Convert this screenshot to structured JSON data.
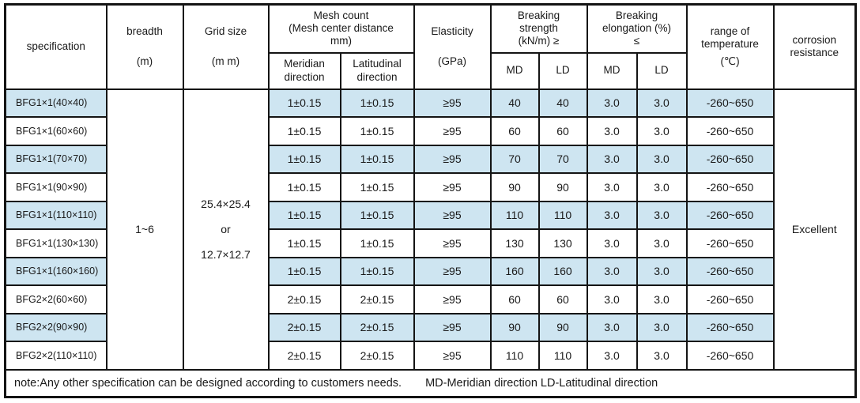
{
  "colors": {
    "highlight_row": "#cee5f1",
    "border": "#141414",
    "text": "#1a1a1a",
    "background": "#ffffff"
  },
  "header": {
    "specification": "specification",
    "breadth": {
      "l1": "breadth",
      "l2": "(m)"
    },
    "grid_size": {
      "l1": "Grid size",
      "l2": "(m m)"
    },
    "mesh_count": {
      "l1": "Mesh count",
      "l2": "(Mesh center distance",
      "l3": "mm)",
      "sub": [
        "Meridian direction",
        "Latitudinal direction"
      ]
    },
    "elasticity": {
      "l1": "Elasticity",
      "l2": "(GPa)"
    },
    "breaking_strength": {
      "l1": "Breaking",
      "l2": "strength",
      "l3": "(kN/m)  ≥",
      "sub": [
        "MD",
        "LD"
      ]
    },
    "breaking_elongation": {
      "l1": "Breaking",
      "l2": "elongation (%)",
      "l3": "≤",
      "sub": [
        "MD",
        "LD"
      ]
    },
    "temperature": {
      "l1": "range of",
      "l2": "temperature",
      "l3": "(℃)"
    },
    "corrosion": {
      "l1": "corrosion",
      "l2": "resistance"
    }
  },
  "merged": {
    "breadth": "1~6",
    "grid_size": [
      "25.4×25.4",
      "or",
      "12.7×12.7"
    ],
    "corrosion": "Excellent"
  },
  "rows": [
    {
      "spec": "BFG1×1(40×40)",
      "mesh_md": "1±0.15",
      "mesh_ld": "1±0.15",
      "elasticity": "≥95",
      "bs_md": "40",
      "bs_ld": "40",
      "be_md": "3.0",
      "be_ld": "3.0",
      "temp": "-260~650",
      "highlight": true
    },
    {
      "spec": "BFG1×1(60×60)",
      "mesh_md": "1±0.15",
      "mesh_ld": "1±0.15",
      "elasticity": "≥95",
      "bs_md": "60",
      "bs_ld": "60",
      "be_md": "3.0",
      "be_ld": "3.0",
      "temp": "-260~650",
      "highlight": false
    },
    {
      "spec": "BFG1×1(70×70)",
      "mesh_md": "1±0.15",
      "mesh_ld": "1±0.15",
      "elasticity": "≥95",
      "bs_md": "70",
      "bs_ld": "70",
      "be_md": "3.0",
      "be_ld": "3.0",
      "temp": "-260~650",
      "highlight": true
    },
    {
      "spec": "BFG1×1(90×90)",
      "mesh_md": "1±0.15",
      "mesh_ld": "1±0.15",
      "elasticity": "≥95",
      "bs_md": "90",
      "bs_ld": "90",
      "be_md": "3.0",
      "be_ld": "3.0",
      "temp": "-260~650",
      "highlight": false
    },
    {
      "spec": "BFG1×1(110×110)",
      "mesh_md": "1±0.15",
      "mesh_ld": "1±0.15",
      "elasticity": "≥95",
      "bs_md": "110",
      "bs_ld": "110",
      "be_md": "3.0",
      "be_ld": "3.0",
      "temp": "-260~650",
      "highlight": true
    },
    {
      "spec": "BFG1×1(130×130)",
      "mesh_md": "1±0.15",
      "mesh_ld": "1±0.15",
      "elasticity": "≥95",
      "bs_md": "130",
      "bs_ld": "130",
      "be_md": "3.0",
      "be_ld": "3.0",
      "temp": "-260~650",
      "highlight": false
    },
    {
      "spec": "BFG1×1(160×160)",
      "mesh_md": "1±0.15",
      "mesh_ld": "1±0.15",
      "elasticity": "≥95",
      "bs_md": "160",
      "bs_ld": "160",
      "be_md": "3.0",
      "be_ld": "3.0",
      "temp": "-260~650",
      "highlight": true
    },
    {
      "spec": "BFG2×2(60×60)",
      "mesh_md": "2±0.15",
      "mesh_ld": "2±0.15",
      "elasticity": "≥95",
      "bs_md": "60",
      "bs_ld": "60",
      "be_md": "3.0",
      "be_ld": "3.0",
      "temp": "-260~650",
      "highlight": false
    },
    {
      "spec": "BFG2×2(90×90)",
      "mesh_md": "2±0.15",
      "mesh_ld": "2±0.15",
      "elasticity": "≥95",
      "bs_md": "90",
      "bs_ld": "90",
      "be_md": "3.0",
      "be_ld": "3.0",
      "temp": "-260~650",
      "highlight": true
    },
    {
      "spec": "BFG2×2(110×110)",
      "mesh_md": "2±0.15",
      "mesh_ld": "2±0.15",
      "elasticity": "≥95",
      "bs_md": "110",
      "bs_ld": "110",
      "be_md": "3.0",
      "be_ld": "3.0",
      "temp": "-260~650",
      "highlight": false
    }
  ],
  "note": {
    "main": "note:Any other specification can be designed according to customers  needs.",
    "legend": "MD-Meridian direction LD-Latitudinal direction"
  }
}
